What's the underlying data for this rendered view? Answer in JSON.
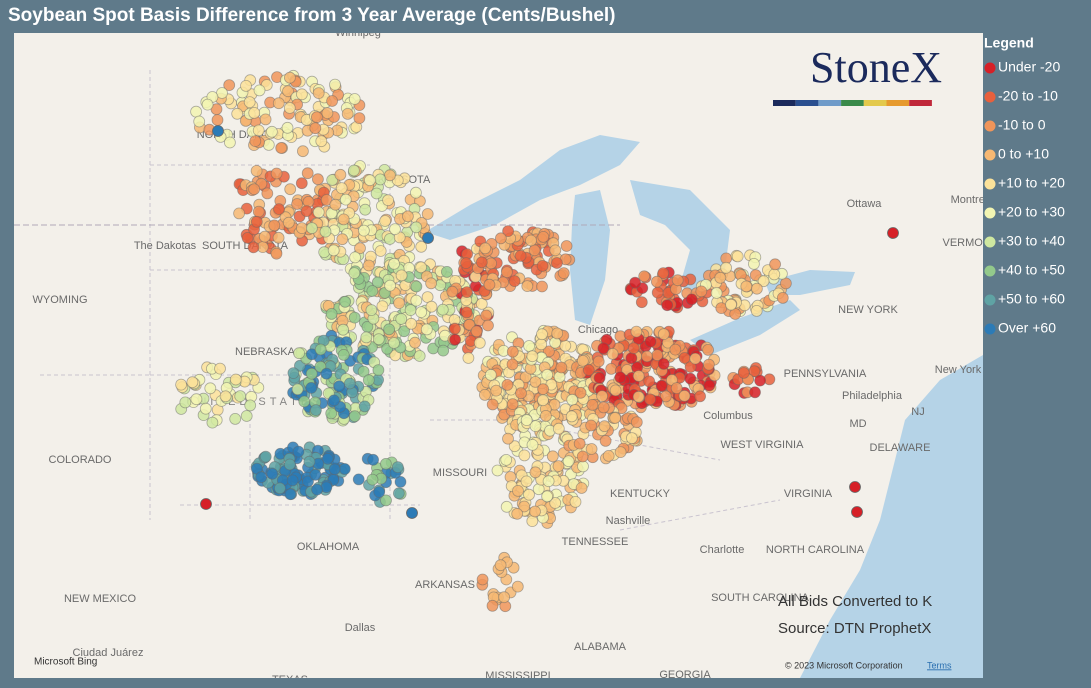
{
  "title": "Soybean Spot Basis Difference from 3 Year Average (Cents/Bushel)",
  "legend": {
    "title": "Legend",
    "items": [
      {
        "label": "Under -20",
        "color": "#d62027"
      },
      {
        "label": "-20 to -10",
        "color": "#e8603c"
      },
      {
        "label": "-10 to 0",
        "color": "#f0955a"
      },
      {
        "label": "0 to +10",
        "color": "#f6b873"
      },
      {
        "label": "+10 to +20",
        "color": "#fbe29a"
      },
      {
        "label": "+20 to +30",
        "color": "#f2f5b2"
      },
      {
        "label": "+30 to +40",
        "color": "#cfe8a0"
      },
      {
        "label": "+40 to +50",
        "color": "#93c98b"
      },
      {
        "label": "+50 to +60",
        "color": "#5fa3a4"
      },
      {
        "label": "Over +60",
        "color": "#2c7bb6"
      }
    ]
  },
  "logo": "StoneX",
  "map_labels": [
    "NORTH DAKOTA",
    "The Dakotas",
    "SOUTH DAKOTA",
    "MINNESOTA",
    "WYOMING",
    "NEBRASKA",
    "UNITED STATES",
    "COLORADO",
    "MISSOURI",
    "KENTUCKY",
    "TENNESSEE",
    "OKLAHOMA",
    "ARKANSAS",
    "NEW MEXICO",
    "VIRGINIA",
    "WEST VIRGINIA",
    "NORTH CAROLINA",
    "SOUTH CAROLINA",
    "PENNSYLVANIA",
    "NEW YORK",
    "ALABAMA",
    "GEORGIA",
    "MISSISSIPPI",
    "TEXAS",
    "DELAWARE",
    "MD",
    "NJ",
    "Chicago",
    "Columbus",
    "Nashville",
    "Charlotte",
    "Dallas",
    "Philadelphia",
    "New York",
    "Ottawa",
    "Montreal",
    "Ciudad Juárez",
    "Winnipeg",
    "VERMONT"
  ],
  "notes": [
    "All Bids Converted to K",
    "Source: DTN ProphetX"
  ],
  "attribution": {
    "provider": "Microsoft Bing",
    "copyright": "© 2023 Microsoft Corporation",
    "terms": "Terms"
  }
}
